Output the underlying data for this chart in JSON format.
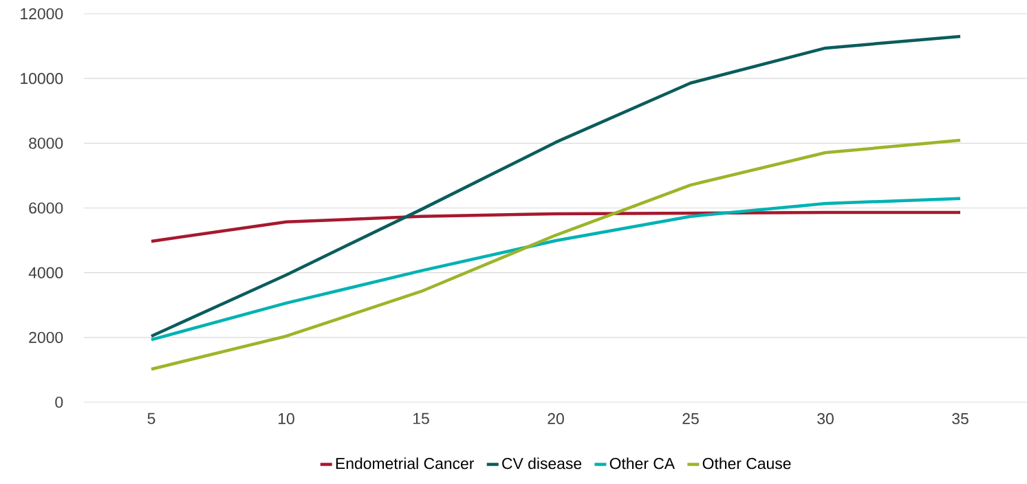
{
  "chart_data": {
    "type": "line",
    "categories": [
      "5",
      "10",
      "15",
      "20",
      "25",
      "30",
      "35"
    ],
    "series": [
      {
        "name": "Endometrial Cancer",
        "color": "#a6192e",
        "values": [
          4970,
          5570,
          5740,
          5820,
          5840,
          5860,
          5860
        ]
      },
      {
        "name": "CV disease",
        "color": "#0b5c5c",
        "values": [
          2040,
          3930,
          5950,
          8030,
          9860,
          10940,
          11300
        ]
      },
      {
        "name": "Other CA",
        "color": "#00b2b2",
        "values": [
          1930,
          3060,
          4060,
          4990,
          5740,
          6140,
          6290
        ]
      },
      {
        "name": "Other Cause",
        "color": "#9bb52a",
        "values": [
          1020,
          2040,
          3420,
          5160,
          6710,
          7710,
          8090
        ]
      }
    ],
    "ylim": [
      0,
      12000
    ],
    "yticks": [
      0,
      2000,
      4000,
      6000,
      8000,
      10000,
      12000
    ],
    "grid": "y",
    "legend": "bottom",
    "marker": "none",
    "line_style": "solid"
  }
}
